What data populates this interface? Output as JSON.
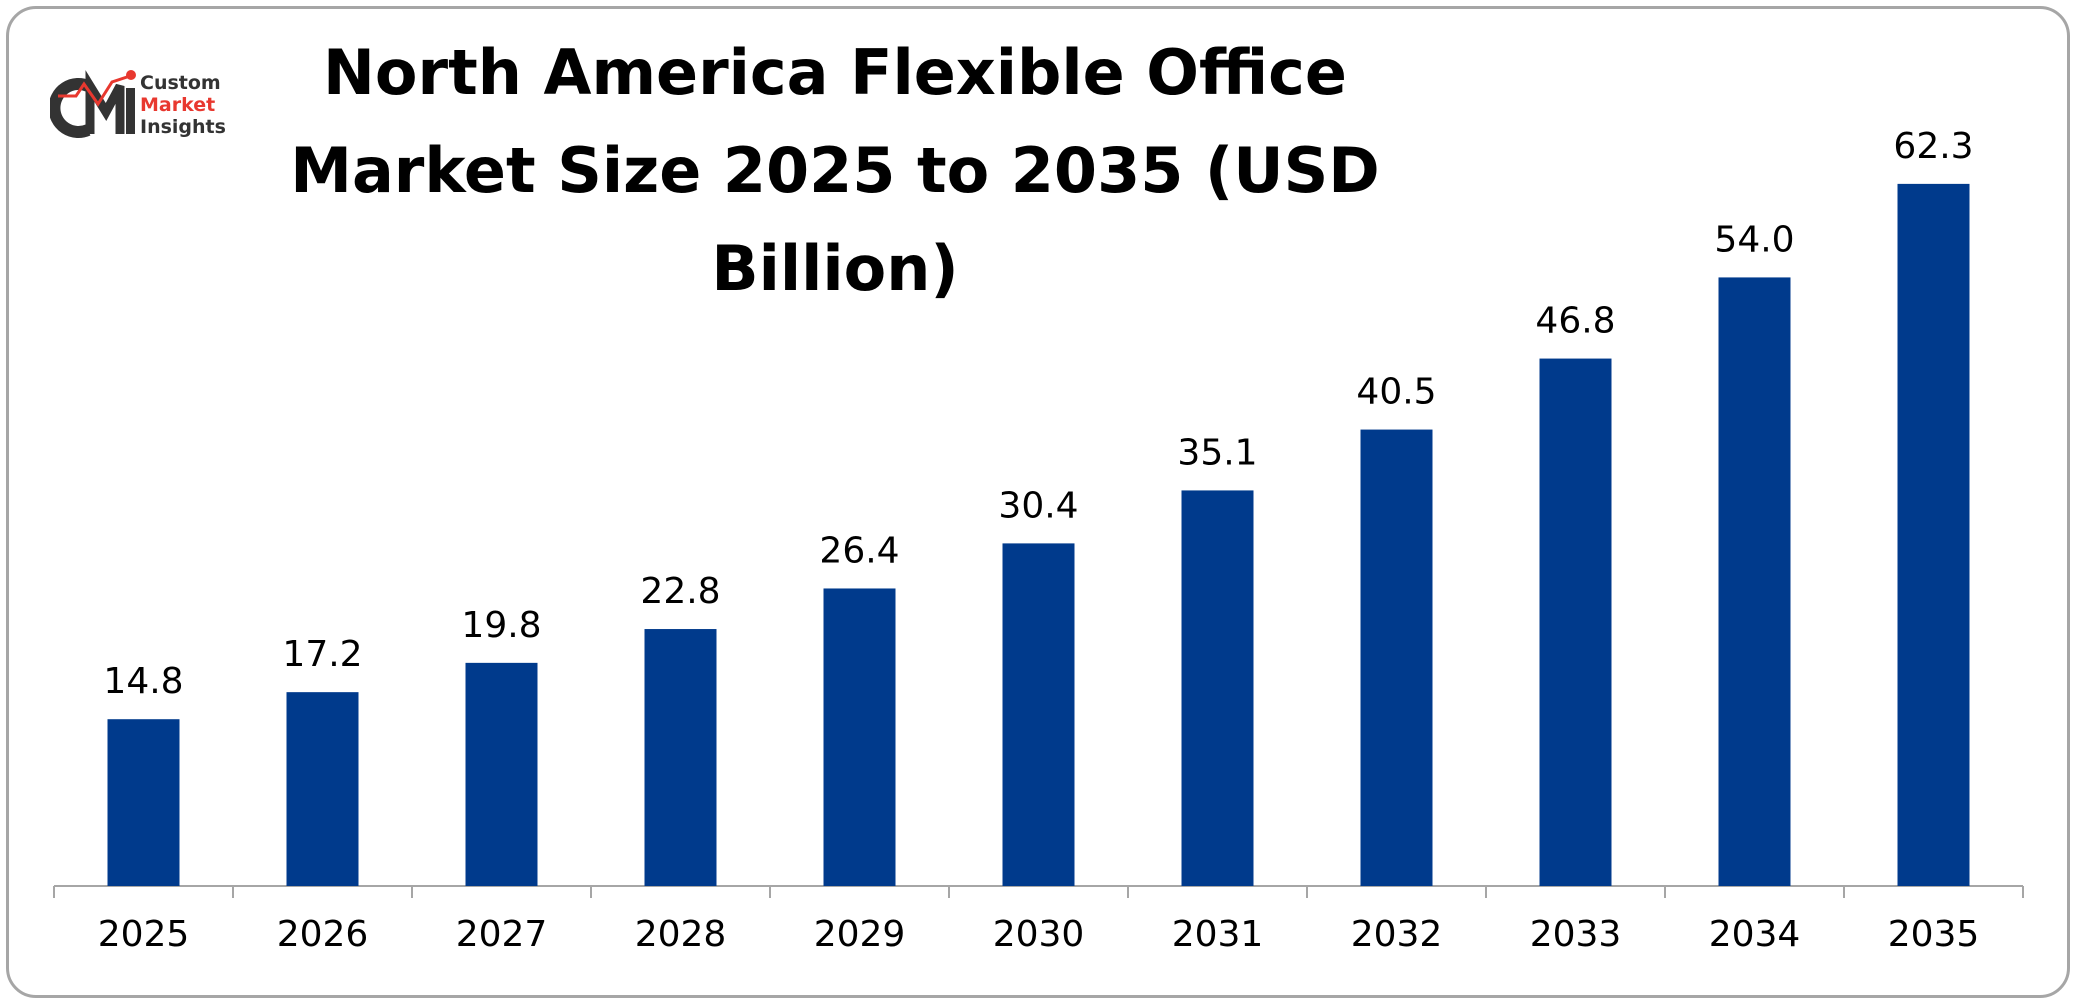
{
  "brand": {
    "logo_mark": "CMI",
    "line1": "Custom",
    "line2": "Market",
    "line3": "Insights",
    "colors": {
      "dark": "#333333",
      "accent": "#e8382f"
    }
  },
  "chart_data": {
    "type": "bar",
    "title": "North America Flexible Office Market Size 2025 to 2035 (USD Billion)",
    "xlabel": "",
    "ylabel": "",
    "categories": [
      "2025",
      "2026",
      "2027",
      "2028",
      "2029",
      "2030",
      "2031",
      "2032",
      "2033",
      "2034",
      "2035"
    ],
    "values": [
      14.8,
      17.2,
      19.8,
      22.8,
      26.4,
      30.4,
      35.1,
      40.5,
      46.8,
      54.0,
      62.3
    ],
    "value_labels": [
      "14.8",
      "17.2",
      "19.8",
      "22.8",
      "26.4",
      "30.4",
      "35.1",
      "40.5",
      "46.8",
      "54.0",
      "62.3"
    ],
    "ylim": [
      0,
      70
    ],
    "grid": false,
    "legend": "none",
    "colors": {
      "bar": "#003a8c",
      "axis": "#a6a6a6"
    }
  }
}
